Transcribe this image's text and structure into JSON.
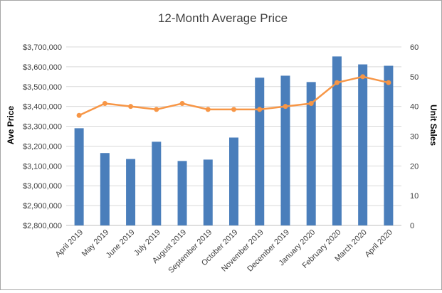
{
  "chart_data": {
    "type": "bar",
    "title": "12-Month Average Price",
    "categories": [
      "April 2019",
      "May 2019",
      "June 2019",
      "July 2019",
      "August 2019",
      "September 2019",
      "October 2019",
      "November 2019",
      "December 2019",
      "January 2020",
      "February 2020",
      "March 2020",
      "April 2020"
    ],
    "series": [
      {
        "type": "bar",
        "axis": "left",
        "color": "#4a7ebb",
        "values": [
          3290000,
          3165000,
          3135000,
          3222000,
          3125000,
          3132000,
          3243000,
          3545000,
          3555000,
          3523000,
          3652000,
          3612000,
          3605000
        ]
      },
      {
        "type": "line",
        "axis": "right",
        "color": "#f79646",
        "values": [
          37,
          41,
          40,
          39,
          41,
          39,
          39,
          39,
          40,
          41,
          48,
          50,
          48
        ]
      }
    ],
    "ylabel": "Ave Price",
    "y2label": "Unit Sales",
    "ylim": [
      2800000,
      3700000
    ],
    "y2lim": [
      0,
      60
    ],
    "yticks": [
      "$2,800,000",
      "$2,900,000",
      "$3,000,000",
      "$3,100,000",
      "$3,200,000",
      "$3,300,000",
      "$3,400,000",
      "$3,500,000",
      "$3,600,000",
      "$3,700,000"
    ],
    "y2ticks": [
      "0",
      "10",
      "20",
      "30",
      "40",
      "50",
      "60"
    ],
    "grid": true,
    "legend": "none"
  }
}
